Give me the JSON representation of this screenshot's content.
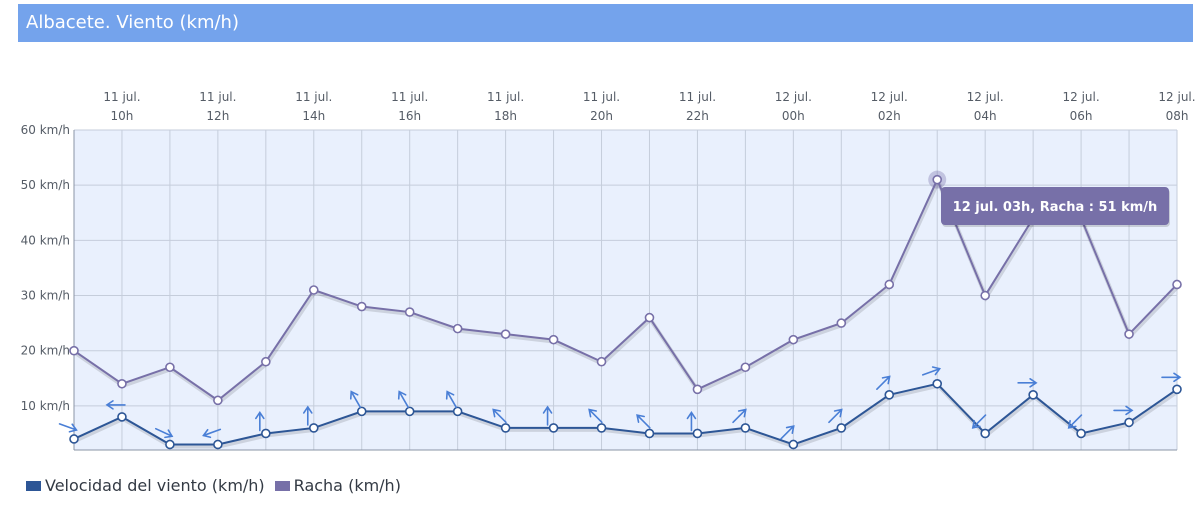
{
  "header": {
    "title": "Albacete. Viento (km/h)"
  },
  "colors": {
    "title_bg": "#74a3ec",
    "plot_bg": "#e9f0fd",
    "grid": "#c5cddb",
    "speed": "#2d5696",
    "gust": "#7770a8",
    "arrow": "#4a7fd6",
    "tooltip_bg": "#7770a8"
  },
  "chart_data": {
    "type": "line",
    "x": [
      "11 jul. 09h",
      "11 jul. 10h",
      "11 jul. 11h",
      "11 jul. 12h",
      "11 jul. 13h",
      "11 jul. 14h",
      "11 jul. 15h",
      "11 jul. 16h",
      "11 jul. 17h",
      "11 jul. 18h",
      "11 jul. 19h",
      "11 jul. 20h",
      "11 jul. 21h",
      "11 jul. 22h",
      "11 jul. 23h",
      "12 jul. 00h",
      "12 jul. 01h",
      "12 jul. 02h",
      "12 jul. 03h",
      "12 jul. 04h",
      "12 jul. 05h",
      "12 jul. 06h",
      "12 jul. 07h",
      "12 jul. 08h"
    ],
    "x_tick_labels": [
      {
        "line1": "11 jul.",
        "line2": "10h"
      },
      {
        "line1": "11 jul.",
        "line2": "12h"
      },
      {
        "line1": "11 jul.",
        "line2": "14h"
      },
      {
        "line1": "11 jul.",
        "line2": "16h"
      },
      {
        "line1": "11 jul.",
        "line2": "18h"
      },
      {
        "line1": "11 jul.",
        "line2": "20h"
      },
      {
        "line1": "11 jul.",
        "line2": "22h"
      },
      {
        "line1": "12 jul.",
        "line2": "00h"
      },
      {
        "line1": "12 jul.",
        "line2": "02h"
      },
      {
        "line1": "12 jul.",
        "line2": "04h"
      },
      {
        "line1": "12 jul.",
        "line2": "06h"
      },
      {
        "line1": "12 jul.",
        "line2": "08h"
      }
    ],
    "y_tick_labels": [
      "10 km/h",
      "20 km/h",
      "30 km/h",
      "40 km/h",
      "50 km/h",
      "60 km/h"
    ],
    "y_ticks": [
      10,
      20,
      30,
      40,
      50,
      60
    ],
    "ylim": [
      2,
      60
    ],
    "grid": true,
    "legend_position": "bottom-left",
    "series": [
      {
        "name": "Velocidad del viento (km/h)",
        "values": [
          4,
          8,
          3,
          3,
          5,
          6,
          9,
          9,
          9,
          6,
          6,
          6,
          5,
          5,
          6,
          3,
          6,
          12,
          14,
          5,
          12,
          5,
          7,
          13
        ],
        "arrow_angles_deg": [
          -20,
          180,
          -25,
          200,
          90,
          90,
          120,
          120,
          120,
          135,
          90,
          135,
          135,
          90,
          45,
          45,
          45,
          45,
          20,
          225,
          0,
          225,
          0,
          0
        ]
      },
      {
        "name": "Racha (km/h)",
        "values": [
          20,
          14,
          17,
          11,
          18,
          31,
          28,
          27,
          24,
          23,
          22,
          18,
          26,
          13,
          17,
          22,
          25,
          32,
          51,
          30,
          44,
          44,
          23,
          32
        ]
      }
    ],
    "tooltip": {
      "text": "12 jul. 03h, Racha : 51 km/h",
      "point_index": 18,
      "series": "Racha (km/h)"
    }
  }
}
